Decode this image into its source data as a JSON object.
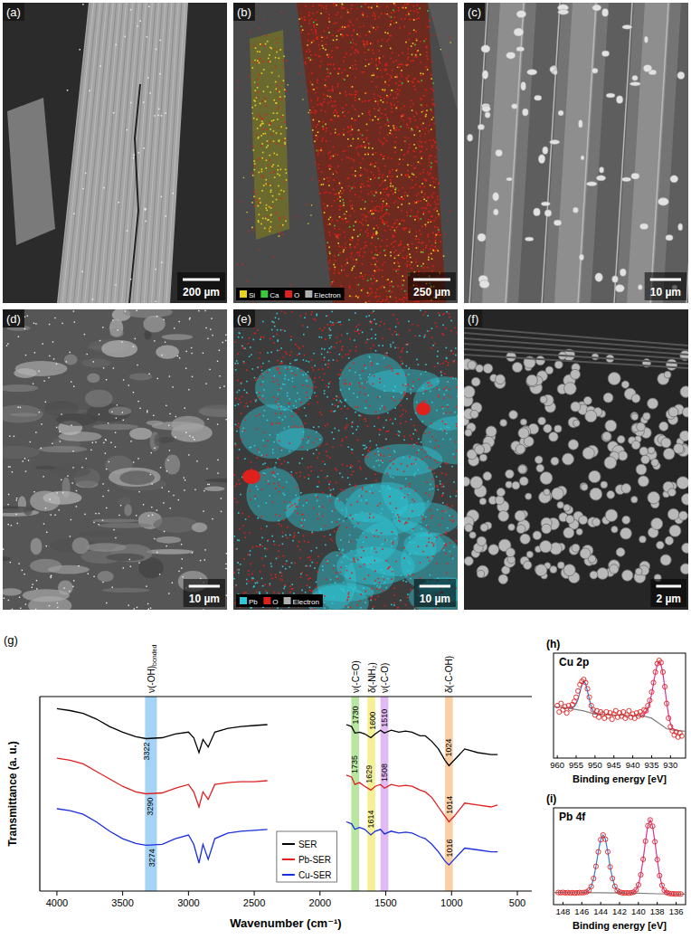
{
  "figure": {
    "panels": [
      {
        "letter": "(a)",
        "scale_bar": "200 µm"
      },
      {
        "letter": "(b)",
        "scale_bar": "250 µm",
        "map_legend": [
          {
            "label": "Si",
            "color": "#e8d21c"
          },
          {
            "label": "Ca",
            "color": "#3cc83c"
          },
          {
            "label": "O",
            "color": "#e0201a"
          },
          {
            "label": "Electron",
            "color": "#b0b0b0"
          }
        ]
      },
      {
        "letter": "(c)",
        "scale_bar": "10 µm"
      },
      {
        "letter": "(d)",
        "scale_bar": "10 µm"
      },
      {
        "letter": "(e)",
        "scale_bar": "10 µm",
        "map_legend": [
          {
            "label": "Pb",
            "color": "#2ec8d8"
          },
          {
            "label": "O",
            "color": "#e0201a"
          },
          {
            "label": "Electron",
            "color": "#b0b0b0"
          }
        ]
      },
      {
        "letter": "(f)",
        "scale_bar": "2 µm"
      }
    ]
  },
  "chart_data": [
    {
      "type": "line",
      "panel_label": "(g)",
      "x_label": "Wavenumber (cm⁻¹)",
      "y_label": "Transmittance (a. u.)",
      "x": [
        4000,
        3900,
        3800,
        3700,
        3600,
        3500,
        3400,
        3322,
        3200,
        3100,
        3000,
        2960,
        2920,
        2890,
        2850,
        2800,
        2700,
        2600,
        2500,
        2400,
        2100,
        1800,
        1760,
        1735,
        1700,
        1660,
        1614,
        1580,
        1540,
        1510,
        1460,
        1400,
        1350,
        1300,
        1240,
        1200,
        1150,
        1100,
        1050,
        1020,
        980,
        900,
        800,
        700,
        650
      ],
      "series": [
        {
          "name": "SER",
          "color": "#000000",
          "values": [
            97.5,
            96.5,
            95,
            92,
            88,
            85,
            82.5,
            81.5,
            82,
            84,
            85,
            82,
            74,
            81,
            77,
            85,
            87,
            88,
            88.5,
            89,
            null,
            89,
            88,
            84.5,
            85,
            84,
            82,
            84,
            86,
            84.5,
            86,
            85,
            85.5,
            85,
            83,
            83,
            80,
            76,
            70,
            67,
            70,
            76,
            74,
            73,
            73
          ],
          "peaks": [
            3322,
            1730,
            1600,
            1510,
            1024
          ]
        },
        {
          "name": "Pb-SER",
          "color": "#e02020",
          "values": [
            71,
            70,
            68,
            64,
            60,
            56,
            53,
            52,
            52.5,
            55,
            57,
            53,
            45,
            53,
            49,
            57,
            58,
            58.5,
            58.5,
            59,
            null,
            62,
            61,
            57,
            58,
            56,
            54,
            56,
            57,
            55,
            57,
            56,
            56.5,
            56,
            54,
            53,
            50,
            45,
            40,
            37,
            40,
            47,
            46,
            45,
            46
          ],
          "peaks": [
            3290,
            1735,
            1629,
            1508,
            1014
          ]
        },
        {
          "name": "Cu-SER",
          "color": "#1a2ee0",
          "values": [
            44,
            43,
            41,
            37,
            32,
            28,
            25.5,
            24.5,
            25,
            28,
            30,
            25,
            15,
            25,
            17,
            28,
            31,
            32,
            32.5,
            33,
            null,
            37,
            36,
            33,
            34,
            33,
            30,
            32,
            33,
            30.5,
            32,
            31,
            31.5,
            31,
            29,
            28,
            25,
            21,
            16,
            14,
            17,
            23,
            22,
            21,
            21
          ],
          "peaks": [
            3274,
            1614,
            1016
          ]
        }
      ],
      "bands": [
        {
          "x": 3285,
          "label": "ν(-OH)",
          "label_sub": "bonded",
          "color": "#8fc8f2"
        },
        {
          "x": 1732,
          "label": "ν(-C=O)",
          "color": "#a6e08a"
        },
        {
          "x": 1610,
          "label": "δ(-NH₂)",
          "color": "#f2ec7a"
        },
        {
          "x": 1510,
          "label": "ν(-C-O)",
          "color": "#d9a8f0"
        },
        {
          "x": 1020,
          "label": "δ(-C-OH)",
          "color": "#f9c38f"
        }
      ],
      "xlim": [
        4130,
        390
      ],
      "xticks": [
        4000,
        3500,
        3000,
        2500,
        2000,
        1500,
        1000,
        500
      ],
      "ylim": [
        0,
        104
      ],
      "tick_labels": "x",
      "legend": "bottom"
    },
    {
      "type": "scatter",
      "panel_label": "(h)",
      "title": "Cu 2p",
      "x_label": "Binding energy [eV]",
      "series": [
        {
          "type": "scatter",
          "marker": "circle",
          "color": "#e02020",
          "x": [
            960,
            959.5,
            959,
            958.5,
            958,
            957.5,
            957,
            956.5,
            956,
            955.5,
            955,
            954.5,
            954,
            953.5,
            953,
            952.5,
            952,
            951.5,
            951,
            950.5,
            950,
            949.5,
            949,
            948.5,
            948,
            947.5,
            947,
            946.5,
            946,
            945.5,
            945,
            944.5,
            944,
            943.5,
            943,
            942.5,
            942,
            941.5,
            941,
            940.5,
            940,
            939.5,
            939,
            938.5,
            938,
            937.5,
            937,
            936.5,
            936,
            935.5,
            935,
            934.5,
            934,
            933.5,
            933,
            932.5,
            932,
            931.5,
            931,
            930.5,
            930,
            929.5,
            929,
            928.5,
            928,
            927.5,
            927
          ],
          "values": [
            50,
            44,
            52,
            46,
            49,
            43,
            50,
            47,
            51,
            54,
            58,
            64,
            70,
            73,
            75,
            72,
            66,
            58,
            50,
            46,
            41,
            45,
            39,
            44,
            42,
            38,
            44,
            40,
            43,
            37,
            42,
            45,
            39,
            43,
            40,
            44,
            38,
            41,
            45,
            39,
            42,
            38,
            43,
            40,
            44,
            41,
            46,
            45,
            50,
            55,
            63,
            72,
            82,
            90,
            93,
            91,
            82,
            68,
            52,
            38,
            30,
            26,
            22,
            25,
            20,
            24,
            21
          ]
        },
        {
          "type": "line",
          "color": "#3a7fd0",
          "x": [
            957,
            956.5,
            956,
            955.5,
            955,
            954.5,
            954,
            953.5,
            953,
            952.5,
            952,
            951.5,
            951,
            950.5,
            950,
            949.5,
            949
          ],
          "values": [
            47.5,
            47.5,
            48,
            49,
            51.5,
            56,
            63,
            70,
            73,
            71,
            64,
            56,
            49,
            45,
            43,
            42.5,
            42
          ]
        },
        {
          "type": "line",
          "color": "#e0309a",
          "x": [
            938,
            937.5,
            937,
            936.5,
            936,
            935.5,
            935,
            934.5,
            934,
            933.5,
            933,
            932.5,
            932,
            931.5,
            931,
            930.5,
            930,
            929.5,
            929,
            928.5,
            928
          ],
          "values": [
            40,
            40.5,
            41.5,
            43.5,
            47,
            53,
            61,
            71,
            81,
            89,
            92,
            89,
            80,
            67,
            53,
            41,
            33,
            28.5,
            27,
            26.5,
            26
          ]
        },
        {
          "type": "line",
          "color": "#808080",
          "x": [
            961,
            957,
            953,
            950,
            945,
            940,
            937,
            935,
            933,
            931,
            929,
            926
          ],
          "values": [
            49,
            47.5,
            45,
            42,
            41,
            40.5,
            40,
            38,
            33,
            28,
            26.5,
            25.5
          ]
        }
      ],
      "xlim": [
        961,
        926
      ],
      "xticks": [
        960,
        955,
        950,
        945,
        940,
        935,
        930
      ],
      "ylim": [
        0,
        100
      ],
      "tick_labels": "x"
    },
    {
      "type": "scatter",
      "panel_label": "(i)",
      "title": "Pb 4f",
      "x_label": "Binding energy [eV]",
      "series": [
        {
          "type": "scatter",
          "marker": "circle",
          "color": "#e02020",
          "x": [
            148.5,
            148.25,
            148,
            147.75,
            147.5,
            147.25,
            147,
            146.75,
            146.5,
            146.25,
            146,
            145.75,
            145.5,
            145.25,
            145,
            144.75,
            144.5,
            144.25,
            144,
            143.75,
            143.5,
            143.25,
            143,
            142.75,
            142.5,
            142.25,
            142,
            141.75,
            141.5,
            141.25,
            141,
            140.75,
            140.5,
            140.25,
            140,
            139.75,
            139.5,
            139.25,
            139,
            138.75,
            138.5,
            138.25,
            138,
            137.75,
            137.5,
            137.25,
            137,
            136.75,
            136.5,
            136.25,
            136,
            135.75,
            135.5
          ],
          "values": [
            12.5,
            12.3,
            12.6,
            12.2,
            12.4,
            12.1,
            12.3,
            12,
            12.2,
            12.4,
            12.3,
            12.5,
            13,
            14.8,
            18.8,
            27,
            39.5,
            54.5,
            67,
            72,
            67.5,
            54.5,
            39,
            27,
            19,
            14.5,
            13,
            12.3,
            12.1,
            12.2,
            12,
            12.3,
            12.9,
            15.3,
            20.5,
            30.8,
            46.8,
            65.5,
            81.5,
            87.5,
            81,
            65,
            46.5,
            30,
            20,
            14.8,
            12.4,
            11.6,
            11.2,
            11.1,
            11,
            11,
            10.9
          ]
        },
        {
          "type": "line",
          "color": "#3a7fd0",
          "x": [
            146,
            145.75,
            145.5,
            145.25,
            145,
            144.75,
            144.5,
            144.25,
            144,
            143.75,
            143.5,
            143.25,
            143,
            142.75,
            142.5,
            142.25,
            142,
            141.75,
            141.5
          ],
          "values": [
            12.3,
            12.4,
            13,
            14.8,
            18.8,
            27,
            39.5,
            54.5,
            67,
            72,
            67.5,
            54.5,
            39,
            27,
            19,
            14.5,
            13,
            12.3,
            12.1
          ]
        },
        {
          "type": "line",
          "color": "#e0309a",
          "x": [
            141,
            140.75,
            140.5,
            140.25,
            140,
            139.75,
            139.5,
            139.25,
            139,
            138.75,
            138.5,
            138.25,
            138,
            137.75,
            137.5,
            137.25,
            137,
            136.75,
            136.5
          ],
          "values": [
            12,
            12.3,
            12.9,
            15.3,
            20.5,
            30.8,
            46.8,
            65.5,
            81.5,
            87.5,
            81,
            65,
            46.5,
            30,
            20,
            14.8,
            12.4,
            11.6,
            11.2
          ]
        },
        {
          "type": "line",
          "color": "#808080",
          "x": [
            149,
            146,
            144,
            142,
            140,
            138,
            135
          ],
          "values": [
            12.5,
            12.3,
            12.2,
            12,
            11.8,
            11.2,
            10.8
          ]
        }
      ],
      "xlim": [
        149,
        135
      ],
      "xticks": [
        148,
        146,
        144,
        142,
        140,
        138,
        136
      ],
      "ylim": [
        0,
        100
      ],
      "tick_labels": "x"
    }
  ]
}
